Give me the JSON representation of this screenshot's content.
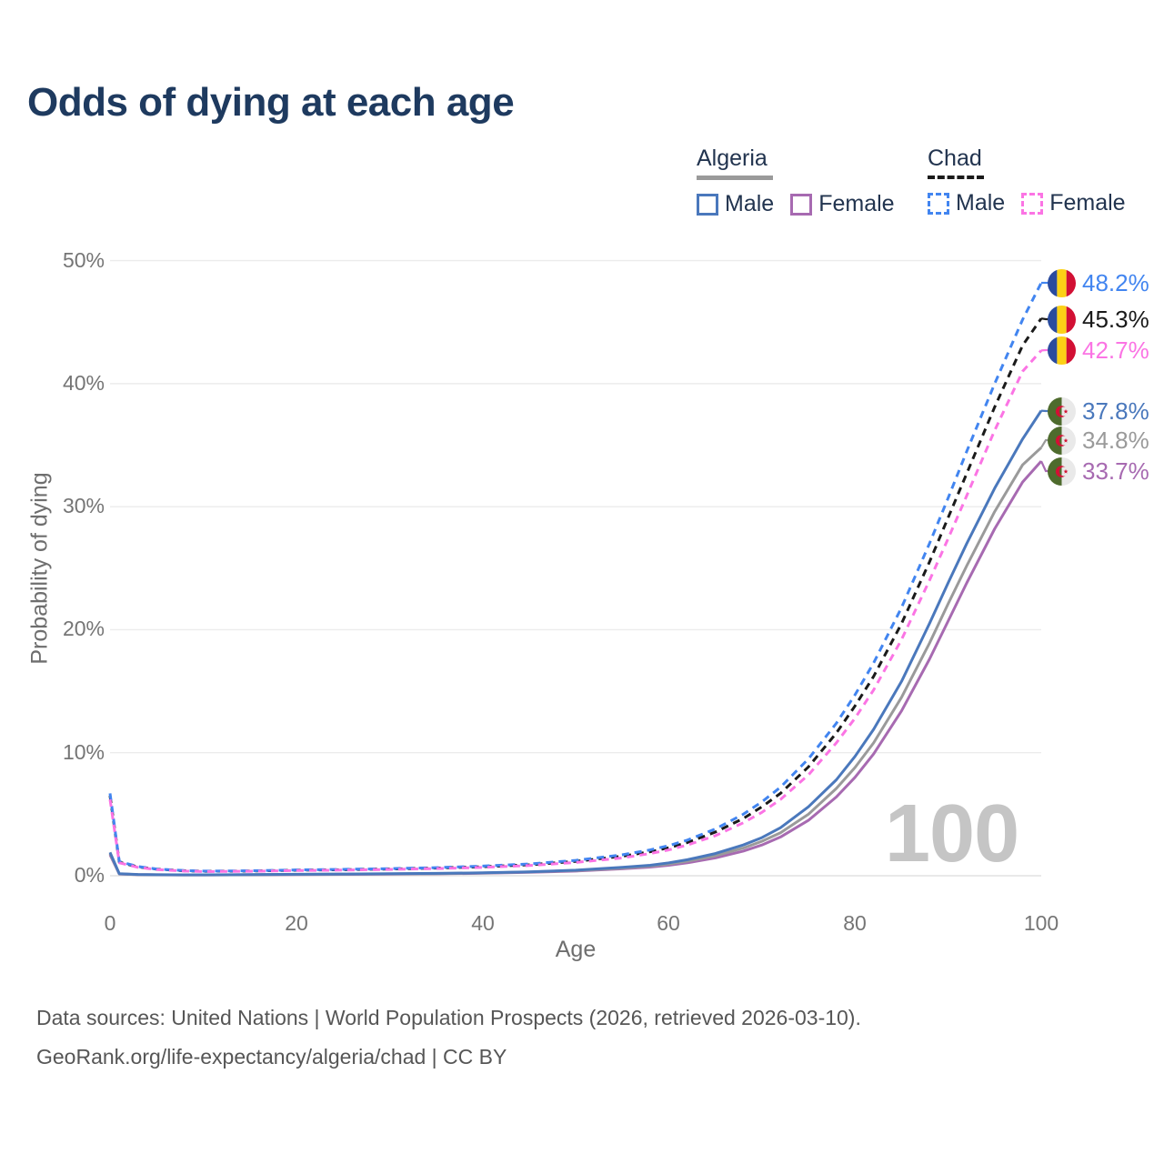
{
  "title": "Odds of dying at each age",
  "legend": {
    "groups": [
      {
        "country": "Algeria",
        "line_style": "solid",
        "entries": [
          {
            "label": "Male",
            "series_index": 3
          },
          {
            "label": "Female",
            "series_index": 5
          }
        ]
      },
      {
        "country": "Chad",
        "line_style": "dashed",
        "entries": [
          {
            "label": "Male",
            "series_index": 0
          },
          {
            "label": "Female",
            "series_index": 2
          }
        ]
      }
    ]
  },
  "axes": {
    "x": {
      "title": "Age",
      "ticks": [
        "0",
        "20",
        "40",
        "60",
        "80",
        "100"
      ]
    },
    "y": {
      "title": "Probability of dying",
      "ticks": [
        "0%",
        "10%",
        "20%",
        "30%",
        "40%",
        "50%"
      ]
    }
  },
  "watermark": "100",
  "footer": {
    "line1": "Data sources: United Nations | World Population Prospects (2026, retrieved 2026-03-10).",
    "line2": "GeoRank.org/life-expectancy/algeria/chad | CC BY"
  },
  "colors": {
    "title_text": "#1e3a5f",
    "legend_text": "#22344f",
    "tick_text": "#757575",
    "grid_line": "#ececec",
    "baseline": "#e2e2e2",
    "watermark": "#c5c5c5",
    "footer_text": "#565656"
  },
  "chart_data": {
    "type": "line",
    "title": "Odds of dying at each age",
    "xlabel": "Age",
    "ylabel": "Probability of dying",
    "x_range": [
      0,
      100
    ],
    "y_range_pct": [
      0,
      50
    ],
    "y_tick_values_pct": [
      0,
      10,
      20,
      30,
      40,
      50
    ],
    "x_tick_values": [
      0,
      20,
      40,
      60,
      80,
      100
    ],
    "grid": "horizontal-only",
    "legend_position": "top-right",
    "ages": [
      0,
      1,
      3,
      5,
      8,
      10,
      15,
      20,
      25,
      30,
      35,
      40,
      45,
      50,
      55,
      58,
      60,
      62,
      65,
      68,
      70,
      72,
      75,
      78,
      80,
      82,
      85,
      88,
      90,
      92,
      95,
      98,
      100
    ],
    "series": [
      {
        "name": "Chad Male",
        "country": "Chad",
        "sex": "male",
        "color": "#4285f0",
        "dash": true,
        "flag": "chad-flag-icon",
        "end_label": "48.2%",
        "end_value_pct": 48.2,
        "values": [
          6.7,
          1.15,
          0.75,
          0.55,
          0.42,
          0.38,
          0.4,
          0.47,
          0.52,
          0.58,
          0.66,
          0.78,
          0.95,
          1.25,
          1.7,
          2.1,
          2.45,
          2.9,
          3.8,
          5.0,
          6.0,
          7.2,
          9.5,
          12.4,
          14.7,
          17.3,
          21.8,
          27.0,
          30.7,
          34.5,
          40.0,
          45.2,
          48.2
        ]
      },
      {
        "name": "Chad Both sexes",
        "country": "Chad",
        "sex": "both",
        "color": "#1a1a1a",
        "dash": true,
        "flag": "chad-flag-icon",
        "end_label": "45.3%",
        "end_value_pct": 45.3,
        "values": [
          6.5,
          1.1,
          0.72,
          0.53,
          0.4,
          0.36,
          0.38,
          0.45,
          0.49,
          0.55,
          0.62,
          0.73,
          0.89,
          1.17,
          1.58,
          1.95,
          2.28,
          2.7,
          3.55,
          4.65,
          5.6,
          6.7,
          8.85,
          11.6,
          13.8,
          16.2,
          20.5,
          25.5,
          29.1,
          32.7,
          38.1,
          43.1,
          45.3
        ]
      },
      {
        "name": "Chad Female",
        "country": "Chad",
        "sex": "female",
        "color": "#fb74e4",
        "dash": true,
        "flag": "chad-flag-icon",
        "end_label": "42.7%",
        "end_value_pct": 42.7,
        "values": [
          6.2,
          1.05,
          0.68,
          0.5,
          0.38,
          0.34,
          0.36,
          0.42,
          0.46,
          0.51,
          0.58,
          0.68,
          0.83,
          1.08,
          1.45,
          1.8,
          2.1,
          2.5,
          3.25,
          4.3,
          5.15,
          6.2,
          8.2,
          10.8,
          12.8,
          15.1,
          19.2,
          24.0,
          27.4,
          30.9,
          36.2,
          41.0,
          42.7
        ]
      },
      {
        "name": "Algeria Male",
        "country": "Algeria",
        "sex": "male",
        "color": "#4a78bc",
        "dash": false,
        "flag": "algeria-flag-icon",
        "end_label": "37.8%",
        "end_value_pct": 37.8,
        "values": [
          1.9,
          0.16,
          0.1,
          0.085,
          0.075,
          0.075,
          0.09,
          0.12,
          0.14,
          0.16,
          0.19,
          0.24,
          0.32,
          0.45,
          0.68,
          0.85,
          1.05,
          1.3,
          1.8,
          2.5,
          3.1,
          3.9,
          5.6,
          7.8,
          9.7,
          11.9,
          15.8,
          20.5,
          23.8,
          27.0,
          31.5,
          35.5,
          37.8
        ]
      },
      {
        "name": "Algeria Both sexes",
        "country": "Algeria",
        "sex": "both",
        "color": "#9a9a9a",
        "dash": false,
        "flag": "algeria-flag-icon",
        "end_label": "34.8%",
        "end_value_pct": 34.8,
        "values": [
          1.8,
          0.15,
          0.095,
          0.08,
          0.07,
          0.07,
          0.083,
          0.11,
          0.125,
          0.145,
          0.17,
          0.22,
          0.3,
          0.42,
          0.62,
          0.78,
          0.95,
          1.18,
          1.62,
          2.25,
          2.8,
          3.5,
          5.0,
          7.1,
          8.8,
          10.8,
          14.5,
          18.9,
          22.1,
          25.2,
          29.6,
          33.4,
          34.8
        ]
      },
      {
        "name": "Algeria Female",
        "country": "Algeria",
        "sex": "female",
        "color": "#a76ab1",
        "dash": false,
        "flag": "algeria-flag-icon",
        "end_label": "33.7%",
        "end_value_pct": 33.7,
        "values": [
          1.7,
          0.14,
          0.09,
          0.075,
          0.065,
          0.065,
          0.075,
          0.095,
          0.11,
          0.13,
          0.155,
          0.2,
          0.27,
          0.38,
          0.56,
          0.7,
          0.85,
          1.05,
          1.45,
          2.0,
          2.5,
          3.15,
          4.5,
          6.4,
          8.0,
          9.9,
          13.4,
          17.6,
          20.7,
          23.8,
          28.2,
          32.0,
          33.7
        ]
      }
    ]
  }
}
